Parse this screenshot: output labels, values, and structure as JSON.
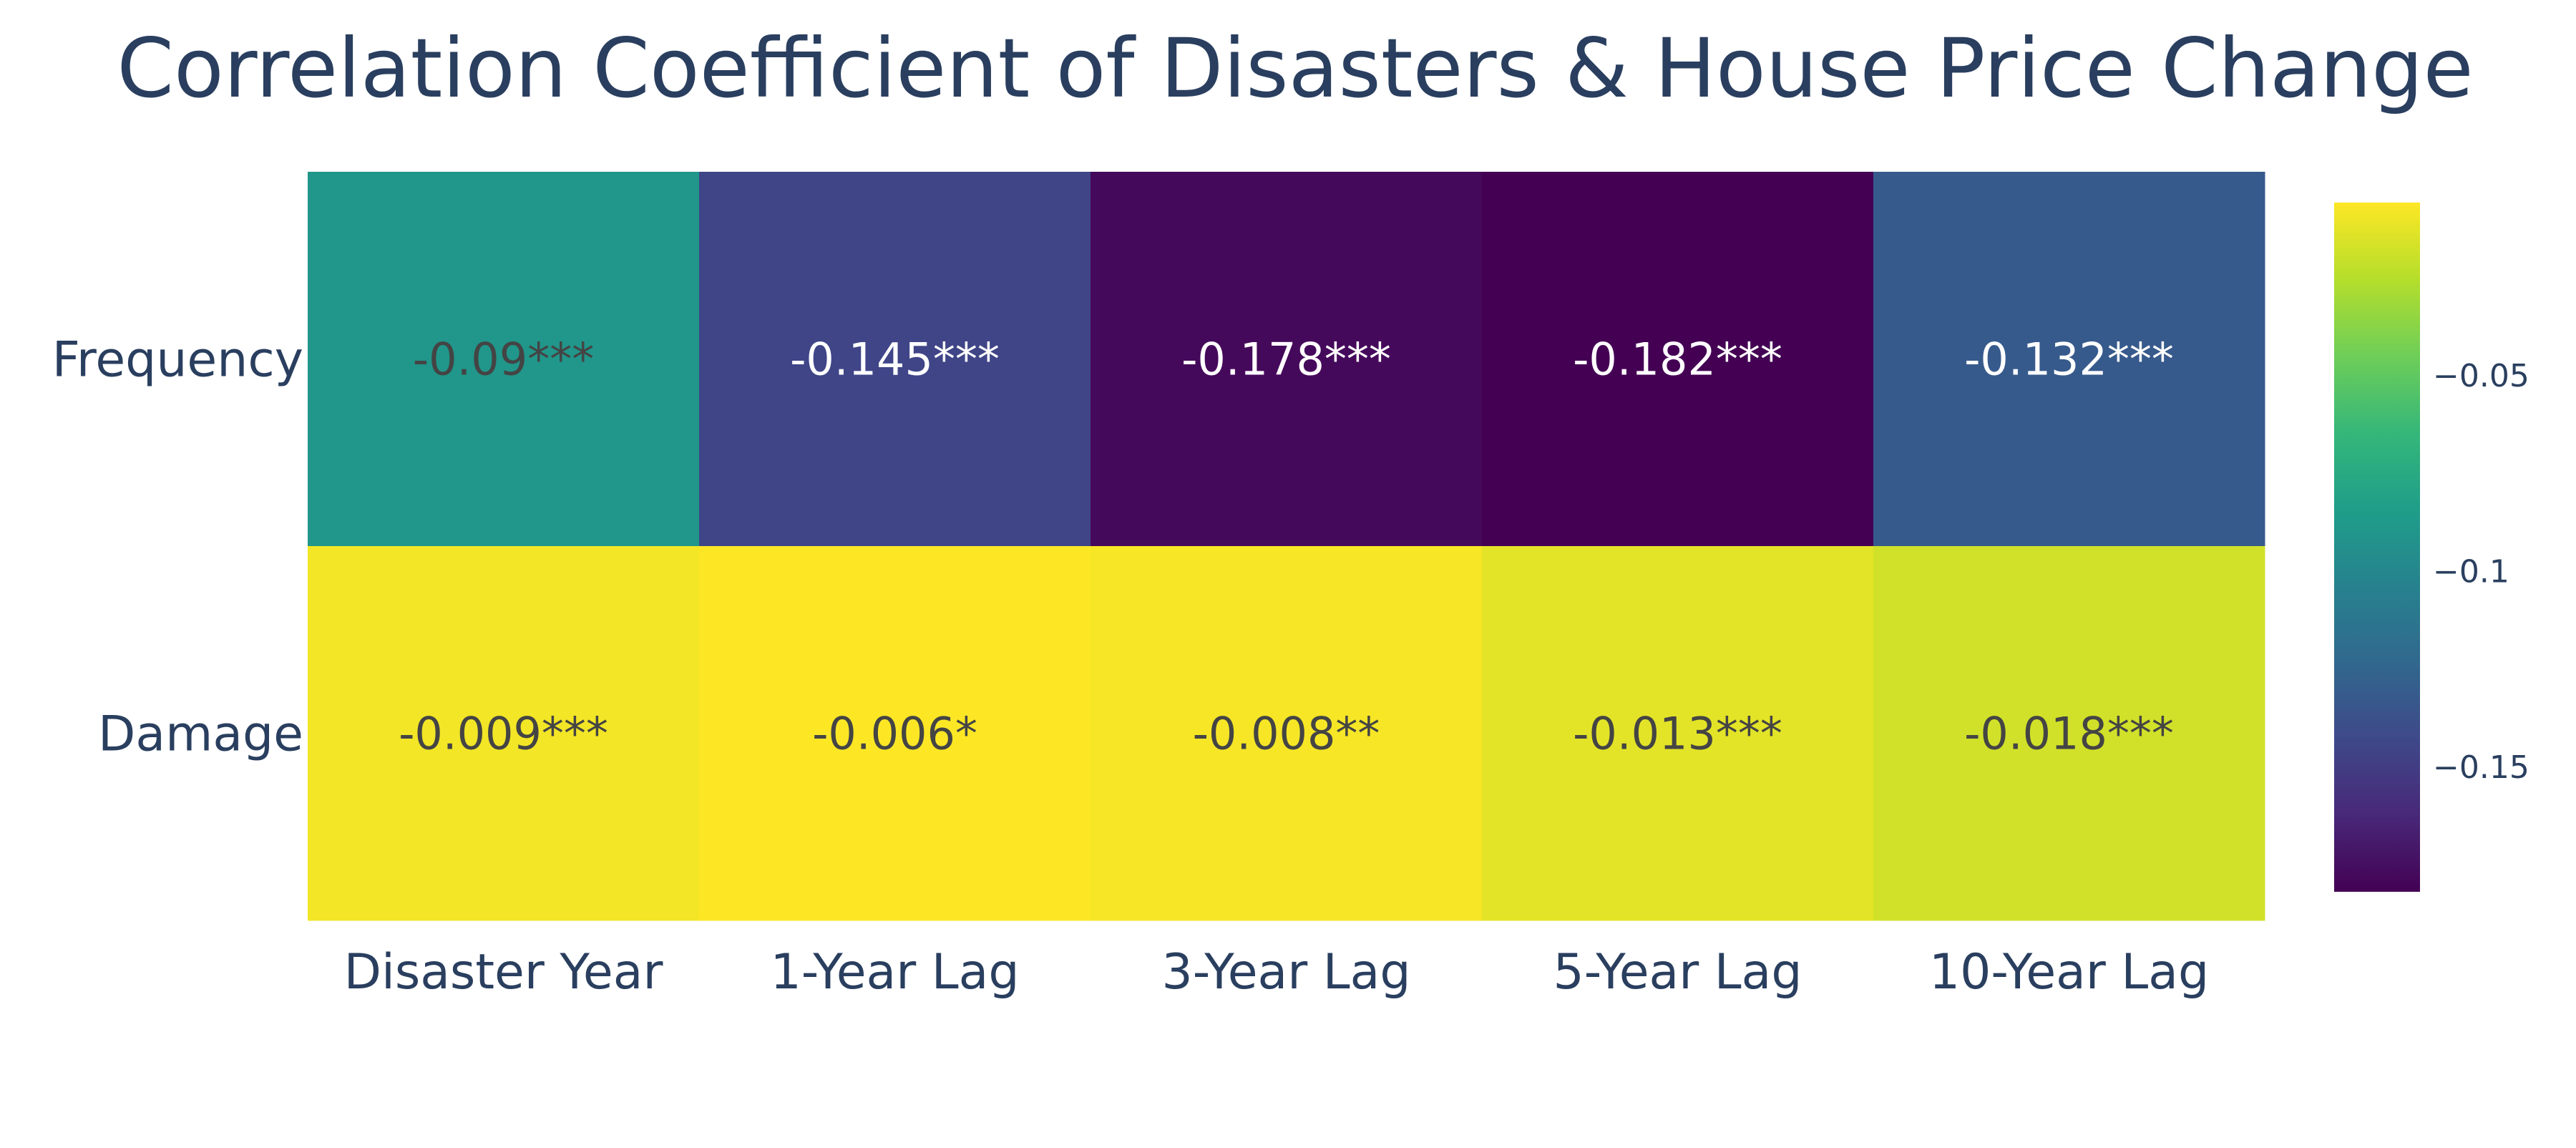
{
  "chart_data": {
    "type": "heatmap",
    "title": "Correlation Coefficient of Disasters & House Price Change",
    "xlabel": "",
    "ylabel": "",
    "x_categories": [
      "Disaster Year",
      "1-Year Lag",
      "3-Year Lag",
      "5-Year Lag",
      "10-Year Lag"
    ],
    "y_categories": [
      "Frequency",
      "Damage"
    ],
    "values": [
      [
        -0.09,
        -0.145,
        -0.178,
        -0.182,
        -0.132
      ],
      [
        -0.009,
        -0.006,
        -0.008,
        -0.013,
        -0.018
      ]
    ],
    "text": [
      [
        "-0.09***",
        "-0.145***",
        "-0.178***",
        "-0.182***",
        "-0.132***"
      ],
      [
        "-0.009***",
        "-0.006*",
        "-0.008**",
        "-0.013***",
        "-0.018***"
      ]
    ],
    "colorscale": "Viridis",
    "zmin": -0.182,
    "zmax": -0.006,
    "colorbar": {
      "tickvals": [
        -0.05,
        -0.1,
        -0.15
      ],
      "ticktext": [
        "−0.05",
        "−0.1",
        "−0.15"
      ]
    },
    "grid": false,
    "legend": "none"
  }
}
